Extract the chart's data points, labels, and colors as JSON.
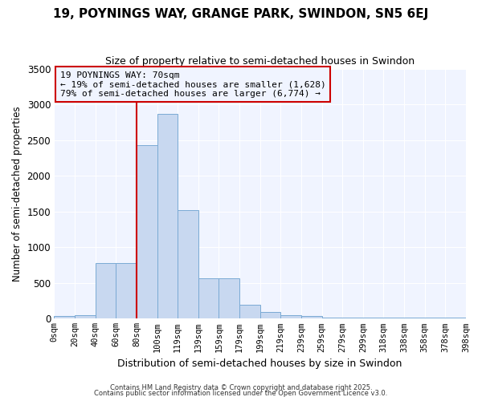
{
  "title": "19, POYNINGS WAY, GRANGE PARK, SWINDON, SN5 6EJ",
  "subtitle": "Size of property relative to semi-detached houses in Swindon",
  "xlabel": "Distribution of semi-detached houses by size in Swindon",
  "ylabel": "Number of semi-detached properties",
  "bin_labels": [
    "0sqm",
    "20sqm",
    "40sqm",
    "60sqm",
    "80sqm",
    "100sqm",
    "119sqm",
    "139sqm",
    "159sqm",
    "179sqm",
    "199sqm",
    "219sqm",
    "239sqm",
    "259sqm",
    "279sqm",
    "299sqm",
    "318sqm",
    "338sqm",
    "358sqm",
    "378sqm",
    "398sqm"
  ],
  "bar_heights": [
    30,
    50,
    780,
    780,
    2430,
    2870,
    1520,
    560,
    560,
    190,
    90,
    50,
    30,
    15,
    15,
    15,
    15,
    15,
    15,
    15
  ],
  "bar_color": "#c8d8f0",
  "bar_edge_color": "#7aaad4",
  "bg_color": "#ffffff",
  "plot_bg_color": "#f0f4ff",
  "grid_color": "#ffffff",
  "vline_color": "#cc0000",
  "annotation_text": "19 POYNINGS WAY: 70sqm\n← 19% of semi-detached houses are smaller (1,628)\n79% of semi-detached houses are larger (6,774) →",
  "annotation_box_color": "#cc0000",
  "ylim": [
    0,
    3500
  ],
  "yticks": [
    0,
    500,
    1000,
    1500,
    2000,
    2500,
    3000,
    3500
  ],
  "footer1": "Contains HM Land Registry data © Crown copyright and database right 2025.",
  "footer2": "Contains public sector information licensed under the Open Government Licence v3.0."
}
